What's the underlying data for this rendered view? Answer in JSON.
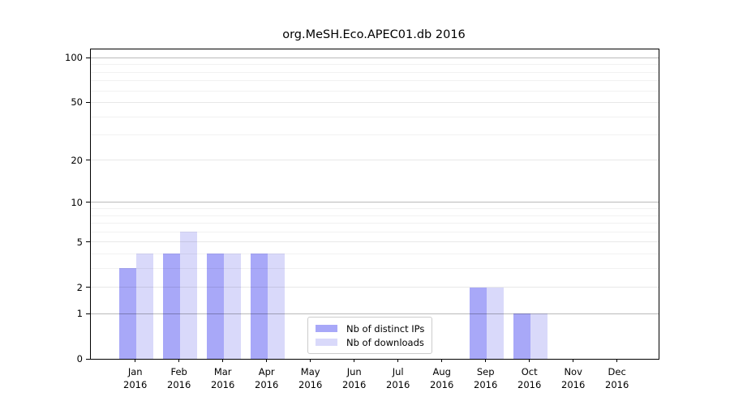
{
  "title": "org.MeSH.Eco.APEC01.db 2016",
  "chart_data": {
    "type": "bar",
    "title": "org.MeSH.Eco.APEC01.db 2016",
    "categories": [
      "Jan",
      "Feb",
      "Mar",
      "Apr",
      "May",
      "Jun",
      "Jul",
      "Aug",
      "Sep",
      "Oct",
      "Nov",
      "Dec"
    ],
    "year": "2016",
    "series": [
      {
        "name": "Nb of distinct IPs",
        "color": "#a8a8f8",
        "values": [
          3,
          4,
          4,
          4,
          0,
          0,
          0,
          0,
          2,
          1,
          0,
          0
        ]
      },
      {
        "name": "Nb of downloads",
        "color": "#d9d9fa",
        "values": [
          4,
          6,
          4,
          4,
          0,
          0,
          0,
          0,
          2,
          1,
          0,
          0
        ]
      }
    ],
    "ylabel": "",
    "xlabel": "",
    "yscale": "log1p",
    "yticks": [
      0,
      1,
      2,
      5,
      10,
      20,
      50,
      100
    ],
    "minor_yticks": [
      3,
      4,
      6,
      7,
      8,
      9,
      30,
      40,
      60,
      70,
      80,
      90
    ],
    "decade_ticks": [
      1,
      10,
      100
    ],
    "ylim": [
      0,
      114
    ],
    "grid": true,
    "legend_position": "bottom-center"
  }
}
